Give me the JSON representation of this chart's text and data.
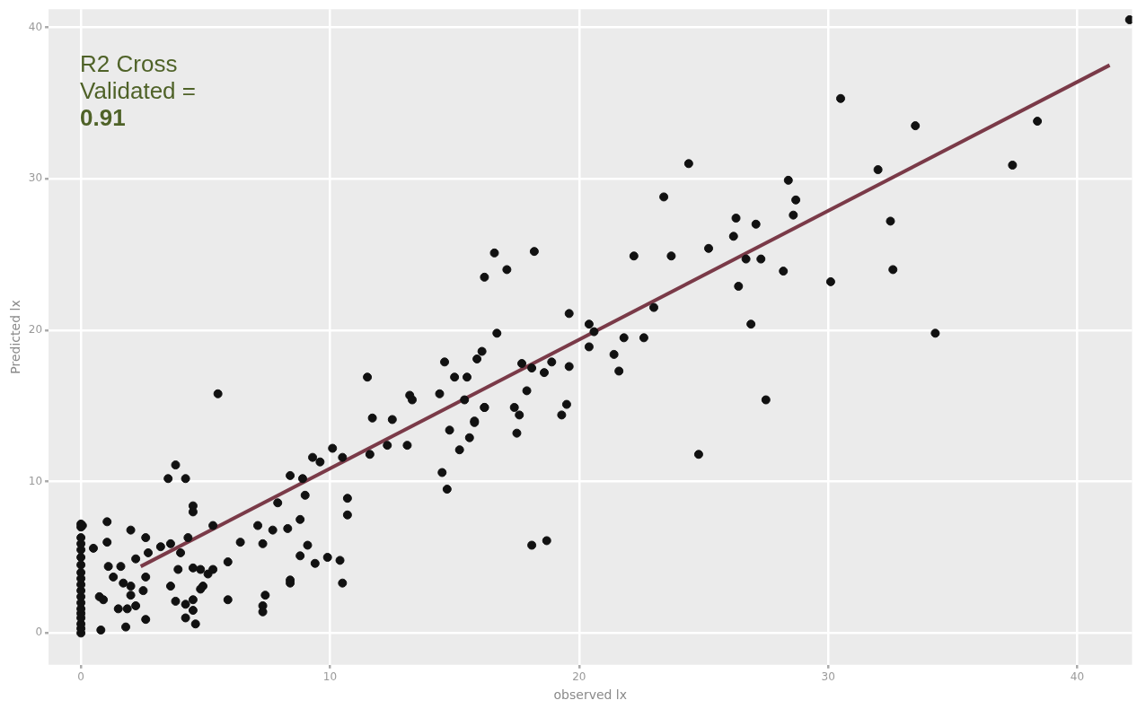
{
  "chart_data": {
    "type": "scatter",
    "xlabel": "observed lx",
    "ylabel": "Predicted lx",
    "annotations": [
      "R2 Cross Validated = 0.91"
    ],
    "xlim": [
      -1.3,
      42.2
    ],
    "ylim": [
      -2.1,
      41.2
    ],
    "xticks": [
      0,
      10,
      20,
      30,
      40
    ],
    "yticks": [
      0,
      10,
      20,
      30,
      40
    ],
    "grid": true,
    "legend": false,
    "series": [
      {
        "color": "#111111",
        "marker": "circle",
        "x": [
          0,
          0,
          0,
          0,
          0,
          0,
          0,
          0,
          0,
          0,
          0,
          0,
          0,
          0,
          0,
          0,
          0,
          0,
          0,
          0.06,
          1.05,
          1.05,
          2.0,
          0.5,
          2.6,
          1.1,
          1.6,
          2.2,
          1.3,
          1.7,
          2.0,
          2.6,
          2.7,
          3.2,
          3.6,
          4.0,
          4.3,
          0.74,
          0.9,
          1.5,
          1.86,
          2.2,
          2.6,
          0.8,
          1.8,
          2.5,
          2.0,
          3.6,
          3.9,
          3.8,
          4.2,
          4.5,
          4.5,
          4.2,
          4.6,
          4.5,
          4.8,
          5.1,
          5.3,
          4.9,
          4.8,
          5.9,
          5.9,
          4.5,
          4.5,
          3.8,
          3.5,
          4.2,
          5.3,
          5.5,
          6.4,
          7.3,
          7.1,
          7.4,
          7.3,
          7.3,
          7.7,
          7.9,
          8.3,
          8.8,
          8.4,
          8.9,
          8.8,
          9.1,
          9.4,
          8.4,
          8.4,
          9.9,
          10.4,
          10.5,
          9.0,
          10.1,
          9.3,
          9.6,
          10.5,
          10.7,
          10.7,
          11.5,
          11.6,
          11.7,
          12.3,
          12.5,
          13.1,
          13.2,
          13.3,
          14.4,
          14.6,
          14.5,
          14.7,
          14.8,
          15.2,
          15.4,
          15.5,
          15.6,
          15.8,
          15.9,
          16.2,
          16.1,
          30.5,
          33.5,
          38.4,
          37.4,
          32.0,
          24.4,
          23.4,
          28.4,
          28.7,
          28.6,
          26.3,
          27.1,
          26.2,
          25.2,
          23.7,
          22.2,
          26.7,
          27.3,
          28.2,
          26.4,
          30.1,
          32.5,
          32.6,
          34.3,
          26.9,
          27.5,
          24.8,
          16.6,
          18.2,
          16.2,
          17.1,
          19.6,
          20.4,
          20.6,
          21.8,
          22.6,
          23.0,
          16.7,
          15.0,
          17.7,
          18.1,
          18.6,
          18.9,
          19.6,
          20.4,
          21.4,
          21.6,
          19.3,
          19.5,
          17.4,
          17.6,
          17.5,
          17.9,
          16.2,
          15.8,
          18.1,
          18.7,
          42.1
        ],
        "values": [
          0,
          0.3,
          0.6,
          1,
          1.3,
          1.6,
          2,
          2.4,
          2.8,
          3.2,
          3.6,
          4,
          4.5,
          5,
          5.5,
          5.9,
          6.3,
          7,
          7.2,
          7.1,
          7.35,
          6.0,
          6.8,
          5.6,
          6.3,
          4.4,
          4.4,
          4.9,
          3.7,
          3.3,
          3.1,
          3.7,
          5.3,
          5.7,
          5.9,
          5.3,
          6.3,
          2.4,
          2.2,
          1.6,
          1.6,
          1.8,
          0.9,
          0.2,
          0.4,
          2.8,
          2.5,
          3.1,
          4.2,
          2.1,
          1.9,
          2.2,
          1.5,
          1.0,
          0.6,
          4.3,
          4.2,
          3.9,
          4.2,
          3.1,
          2.9,
          4.7,
          2.2,
          8.4,
          8.0,
          11.1,
          10.2,
          10.2,
          7.1,
          15.8,
          6.0,
          5.9,
          7.1,
          2.5,
          1.8,
          1.4,
          6.8,
          8.6,
          6.9,
          7.5,
          10.4,
          10.2,
          5.1,
          5.8,
          4.6,
          3.5,
          3.3,
          5.0,
          4.8,
          3.3,
          9.1,
          12.2,
          11.6,
          11.3,
          11.6,
          8.9,
          7.8,
          16.9,
          11.8,
          14.2,
          12.4,
          14.1,
          12.4,
          15.7,
          15.4,
          15.8,
          17.9,
          10.6,
          9.5,
          13.4,
          12.1,
          15.4,
          16.9,
          12.9,
          14.0,
          18.1,
          14.9,
          18.6,
          35.3,
          33.5,
          33.8,
          30.9,
          30.6,
          31.0,
          28.8,
          29.9,
          28.6,
          27.6,
          27.4,
          27.0,
          26.2,
          25.4,
          24.9,
          24.9,
          24.7,
          24.7,
          23.9,
          22.9,
          23.2,
          27.2,
          24.0,
          19.8,
          20.4,
          15.4,
          11.8,
          25.1,
          25.2,
          23.5,
          24.0,
          21.1,
          20.4,
          19.9,
          19.5,
          19.5,
          21.5,
          19.8,
          16.9,
          17.8,
          17.5,
          17.2,
          17.9,
          17.6,
          18.9,
          18.4,
          17.3,
          14.4,
          15.1,
          14.9,
          14.4,
          13.2,
          16.0,
          14.9,
          13.9,
          5.8,
          6.1,
          40.5
        ]
      },
      {
        "type": "line",
        "marker": "none",
        "color": "#7a3a48",
        "x": [
          2.4,
          41.3
        ],
        "values": [
          4.4,
          37.5
        ]
      }
    ]
  }
}
